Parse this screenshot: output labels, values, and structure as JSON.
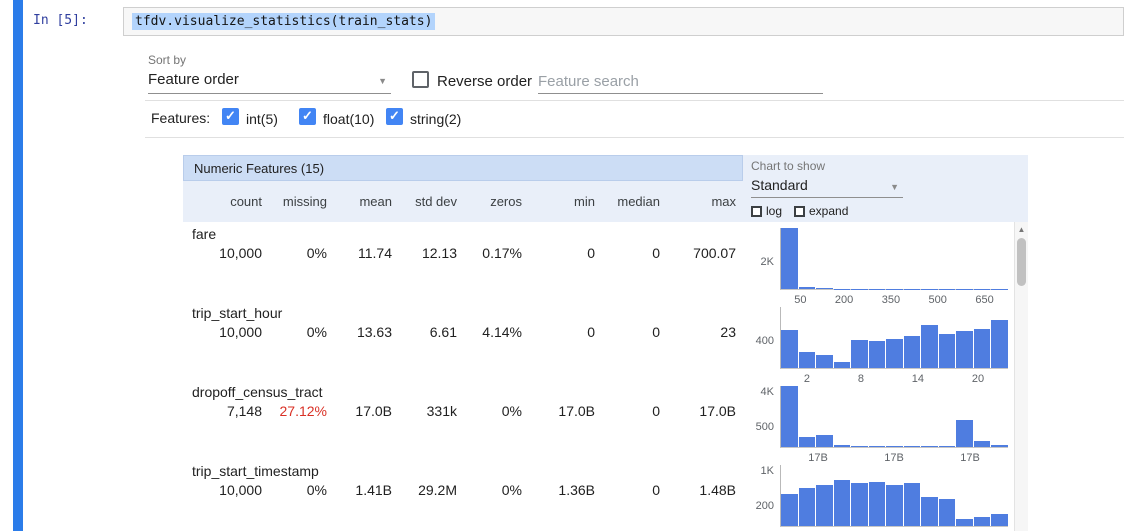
{
  "colors": {
    "accent_blue": "#4285f4",
    "bar_blue": "#4f7de0",
    "alert_red": "#d93025",
    "header_band_bg": "#e9eff9",
    "title_bar_bg": "#ccddf5",
    "selection_bg": "#b3d4fc",
    "cell_indicator": "#2b7ce9",
    "prompt_blue": "#303f9f"
  },
  "notebook": {
    "prompt": "In [5]:",
    "code": "tfdv.visualize_statistics(train_stats)"
  },
  "controls": {
    "sort_by_label": "Sort by",
    "sort_by_value": "Feature order",
    "reverse_order_label": "Reverse order",
    "search_placeholder": "Feature search",
    "features_label": "Features:",
    "feature_filters": [
      {
        "label": "int(5)",
        "checked": true
      },
      {
        "label": "float(10)",
        "checked": true
      },
      {
        "label": "string(2)",
        "checked": true
      }
    ]
  },
  "table": {
    "title": "Numeric Features (15)",
    "columns": [
      "count",
      "missing",
      "mean",
      "std dev",
      "zeros",
      "min",
      "median",
      "max"
    ],
    "rows": [
      {
        "name": "fare",
        "values": [
          "10,000",
          "0%",
          "11.74",
          "12.13",
          "0.17%",
          "0",
          "0",
          "700.07"
        ],
        "missing_alert": false
      },
      {
        "name": "trip_start_hour",
        "values": [
          "10,000",
          "0%",
          "13.63",
          "6.61",
          "4.14%",
          "0",
          "0",
          "23"
        ],
        "missing_alert": false
      },
      {
        "name": "dropoff_census_tract",
        "values": [
          "7,148",
          "27.12%",
          "17.0B",
          "331k",
          "0%",
          "17.0B",
          "0",
          "17.0B"
        ],
        "missing_alert": true
      },
      {
        "name": "trip_start_timestamp",
        "values": [
          "10,000",
          "0%",
          "1.41B",
          "29.2M",
          "0%",
          "1.36B",
          "0",
          "1.48B"
        ],
        "missing_alert": false
      }
    ]
  },
  "chart_controls": {
    "label": "Chart to show",
    "value": "Standard",
    "log_label": "log",
    "expand_label": "expand"
  },
  "chart_data": [
    {
      "type": "bar",
      "title": "fare histogram",
      "y_ticks": [
        "2K"
      ],
      "x_ticks": [
        "50",
        "200",
        "350",
        "500",
        "650"
      ],
      "bars": [
        100,
        3,
        1.2,
        0.8,
        0.6,
        0.5,
        0.4,
        0.3,
        0.3,
        0.2,
        0.2,
        0.2,
        0.2
      ]
    },
    {
      "type": "bar",
      "title": "trip_start_hour histogram",
      "y_ticks": [
        "400"
      ],
      "x_ticks": [
        "2",
        "8",
        "14",
        "20"
      ],
      "bars": [
        62,
        26,
        22,
        10,
        46,
        44,
        48,
        52,
        70,
        55,
        60,
        64,
        78
      ]
    },
    {
      "type": "bar",
      "title": "dropoff_census_tract histogram",
      "y_ticks": [
        "4K",
        "500"
      ],
      "x_ticks": [
        "17B",
        "17B",
        "17B"
      ],
      "bars": [
        100,
        16,
        20,
        4,
        2,
        1,
        1,
        1,
        1,
        1,
        45,
        10,
        3
      ]
    },
    {
      "type": "bar",
      "title": "trip_start_timestamp histogram",
      "y_ticks": [
        "1K",
        "200"
      ],
      "x_ticks": [],
      "bars": [
        52,
        62,
        68,
        75,
        70,
        72,
        68,
        70,
        48,
        45,
        12,
        15,
        20
      ]
    }
  ]
}
